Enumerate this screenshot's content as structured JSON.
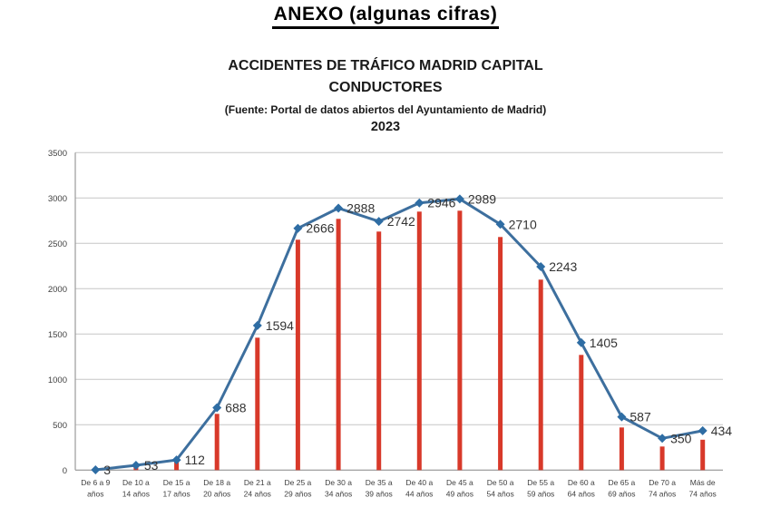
{
  "page": {
    "title": "ANEXO (algunas cifras)"
  },
  "chart": {
    "title_line1": "ACCIDENTES DE TRÁFICO MADRID CAPITAL",
    "title_line2": "CONDUCTORES",
    "source": "(Fuente: Portal de datos abiertos del Ayuntamiento de Madrid)",
    "year": "2023"
  },
  "chart_data": {
    "type": "line",
    "combo_with_bars": true,
    "title": "ACCIDENTES DE TRÁFICO MADRID CAPITAL CONDUCTORES 2023",
    "legend": "none",
    "grid": "horizontal",
    "categories": [
      "De 6 a 9 años",
      "De 10 a 14 años",
      "De 15 a 17 años",
      "De 18 a 20 años",
      "De 21 a 24 años",
      "De 25 a 29 años",
      "De 30 a 34 años",
      "De 35 a 39 años",
      "De 40 a 44 años",
      "De 45 a 49 años",
      "De 50 a 54 años",
      "De 55 a 59 años",
      "De 60 a 64 años",
      "De 65 a 69 años",
      "De 70 a 74 años",
      "Más de 74 años"
    ],
    "label_lines": [
      [
        "De 6 a 9",
        "años"
      ],
      [
        "De 10 a",
        "14 años"
      ],
      [
        "De 15 a",
        "17 años"
      ],
      [
        "De 18 a",
        "20 años"
      ],
      [
        "De 21 a",
        "24 años"
      ],
      [
        "De 25 a",
        "29 años"
      ],
      [
        "De 30 a",
        "34 años"
      ],
      [
        "De 35 a",
        "39 años"
      ],
      [
        "De 40 a",
        "44 años"
      ],
      [
        "De 45 a",
        "49 años"
      ],
      [
        "De 50 a",
        "54 años"
      ],
      [
        "De 55 a",
        "59 años"
      ],
      [
        "De 60 a",
        "64 años"
      ],
      [
        "De 65 a",
        "69 años"
      ],
      [
        "De 70 a",
        "74 años"
      ],
      [
        "Más de",
        "74 años"
      ]
    ],
    "series": [
      {
        "type": "line",
        "point_labels_shown": true,
        "values": [
          3,
          53,
          112,
          688,
          1594,
          2666,
          2888,
          2742,
          2946,
          2989,
          2710,
          2243,
          1405,
          587,
          350,
          434
        ]
      },
      {
        "type": "bar",
        "point_labels_shown": false,
        "values_estimated_from_pixels": true,
        "values": [
          2,
          40,
          95,
          620,
          1460,
          2540,
          2770,
          2630,
          2850,
          2860,
          2570,
          2100,
          1270,
          470,
          260,
          335
        ]
      }
    ],
    "y_axis": {
      "min": 0,
      "max": 3500,
      "step": 500,
      "ticks": [
        0,
        500,
        1000,
        1500,
        2000,
        2500,
        3000,
        3500
      ]
    },
    "colors": {
      "bar": "#d8392a",
      "line": "#3d6f9e",
      "marker": "#2e6da4",
      "grid": "#c6c6c6",
      "axis": "#9b9b9b",
      "tick_text": "#3f3f3f",
      "data_label_text": "#333333"
    }
  }
}
